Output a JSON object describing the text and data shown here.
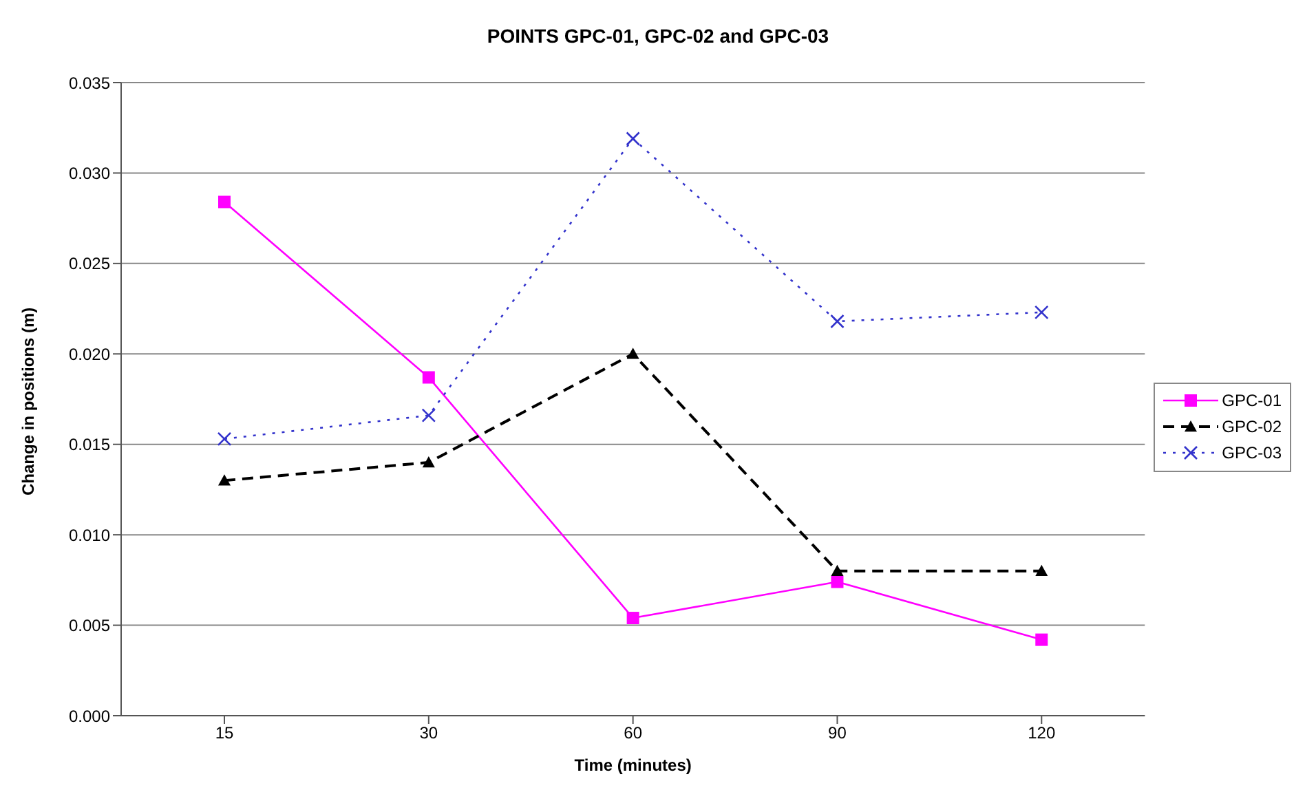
{
  "chart_data": {
    "type": "line",
    "title": "POINTS GPC-01, GPC-02 and GPC-03",
    "xlabel": "Time (minutes)",
    "ylabel": "Change in positions (m)",
    "categories": [
      "15",
      "30",
      "60",
      "90",
      "120"
    ],
    "series": [
      {
        "name": "GPC-01",
        "color": "#ff00ff",
        "marker": "square",
        "line_style": "solid",
        "values": [
          0.0284,
          0.0187,
          0.0054,
          0.0074,
          0.0042
        ]
      },
      {
        "name": "GPC-02",
        "color": "#000000",
        "marker": "triangle",
        "line_style": "dashed",
        "values": [
          0.013,
          0.014,
          0.02,
          0.008,
          0.008
        ]
      },
      {
        "name": "GPC-03",
        "color": "#3333cc",
        "marker": "cross",
        "line_style": "dotted",
        "values": [
          0.0153,
          0.0166,
          0.0319,
          0.0218,
          0.0223
        ]
      }
    ],
    "ylim": [
      0,
      0.035
    ],
    "yticks": [
      {
        "value": 0,
        "label": "0.000"
      },
      {
        "value": 0.005,
        "label": "0.005"
      },
      {
        "value": 0.01,
        "label": "0.010"
      },
      {
        "value": 0.015,
        "label": "0.015"
      },
      {
        "value": 0.02,
        "label": "0.020"
      },
      {
        "value": 0.025,
        "label": "0.025"
      },
      {
        "value": 0.03,
        "label": "0.030"
      },
      {
        "value": 0.035,
        "label": "0.035"
      }
    ],
    "grid": "y",
    "legend": "right"
  }
}
